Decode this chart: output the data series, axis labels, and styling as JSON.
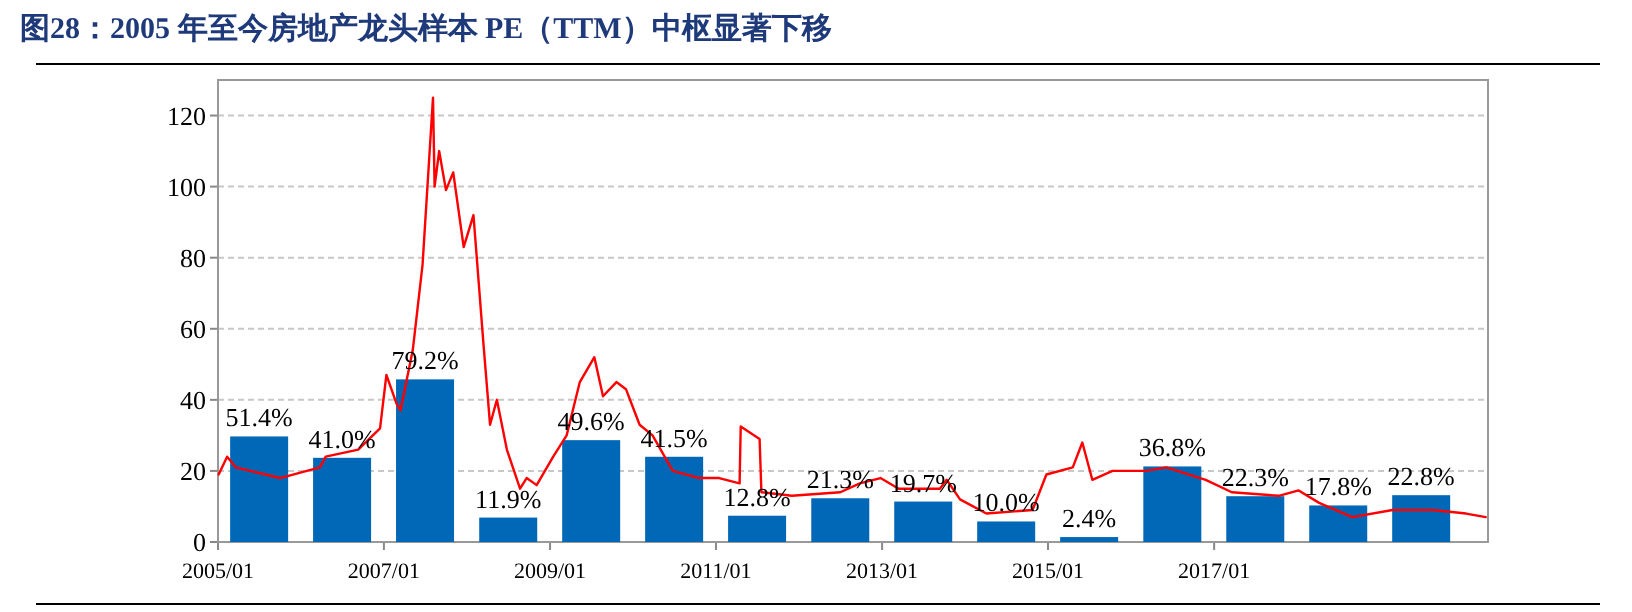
{
  "chart_data": {
    "type": "line",
    "title": "图28：2005 年至今房地产龙头样本 PE（TTM）中枢显著下移",
    "xlim": [
      "2005-01-01",
      "2020-04-20"
    ],
    "ylim": [
      0,
      130
    ],
    "xticks": [
      {
        "value": "2005-01-01",
        "label": "2005/01"
      },
      {
        "value": "2007-01-01",
        "label": "2007/01"
      },
      {
        "value": "2009-01-01",
        "label": "2009/01"
      },
      {
        "value": "2011-01-01",
        "label": "2011/01"
      },
      {
        "value": "2013-01-01",
        "label": "2013/01"
      },
      {
        "value": "2015-01-01",
        "label": "2015/01"
      },
      {
        "value": "2017-01-01",
        "label": "2017/01"
      }
    ],
    "yticks": [
      0,
      20,
      40,
      60,
      80,
      100,
      120
    ],
    "grid": "y",
    "y2lim": [
      0,
      225
    ],
    "series": [
      {
        "type": "bar",
        "axis": "y2",
        "color": "#0068b7",
        "x": [
          "2005-07-01",
          "2006-07-01",
          "2007-07-01",
          "2008-07-01",
          "2009-07-01",
          "2010-07-01",
          "2011-07-01",
          "2012-07-01",
          "2013-07-01",
          "2014-07-01",
          "2015-07-01",
          "2016-07-01",
          "2017-07-01",
          "2018-07-01",
          "2019-07-01"
        ],
        "values": [
          51.4,
          41.0,
          79.2,
          11.9,
          49.6,
          41.5,
          12.8,
          21.3,
          19.7,
          10.0,
          2.4,
          36.8,
          22.3,
          17.8,
          22.8
        ],
        "value_labels": [
          "51.4%",
          "41.0%",
          "79.2%",
          "11.9%",
          "49.6%",
          "41.5%",
          "12.8%",
          "21.3%",
          "19.7%",
          "10.0%",
          "2.4%",
          "36.8%",
          "22.3%",
          "17.8%",
          "22.8%"
        ]
      },
      {
        "color": "#ff0000",
        "x": [
          "2005-01-04",
          "2005-02-10",
          "2005-03-20",
          "2005-10-01",
          "2006-03-25",
          "2006-04-20",
          "2006-09-10",
          "2006-12-15",
          "2007-01-12",
          "2007-02-25",
          "2007-03-15",
          "2007-05-08",
          "2007-06-20",
          "2007-08-05",
          "2007-08-12",
          "2007-09-01",
          "2007-10-01",
          "2007-11-02",
          "2007-12-18",
          "2008-01-30",
          "2008-03-15",
          "2008-04-12",
          "2008-05-12",
          "2008-06-25",
          "2008-08-22",
          "2008-09-20",
          "2008-11-03",
          "2009-01-15",
          "2009-03-15",
          "2009-05-12",
          "2009-07-15",
          "2009-08-22",
          "2009-10-20",
          "2009-12-01",
          "2010-01-30",
          "2010-03-28",
          "2010-06-25",
          "2010-10-20",
          "2011-01-15",
          "2011-04-15",
          "2011-04-20",
          "2011-07-12",
          "2011-07-20",
          "2011-12-01",
          "2012-07-01",
          "2012-09-25",
          "2012-12-25",
          "2013-03-15",
          "2013-09-12",
          "2013-10-12",
          "2013-12-10",
          "2014-04-05",
          "2014-10-25",
          "2014-12-25",
          "2015-04-20",
          "2015-06-01",
          "2015-07-15",
          "2015-10-12",
          "2016-03-08",
          "2016-06-05",
          "2016-11-25",
          "2017-03-20",
          "2017-10-12",
          "2018-01-08",
          "2018-04-08",
          "2018-09-01",
          "2019-02-25",
          "2019-08-20",
          "2020-01-15",
          "2020-04-10"
        ],
        "values": [
          19,
          24,
          21,
          18,
          21,
          24,
          26,
          32,
          47,
          39,
          37,
          54,
          78,
          125,
          100,
          110,
          99,
          104,
          83,
          92,
          55,
          33,
          40,
          26,
          15,
          18,
          16,
          24,
          30,
          45,
          52,
          41,
          45,
          43,
          33,
          30,
          20,
          18,
          18,
          16.5,
          32.5,
          29,
          14,
          13,
          14,
          16.5,
          18,
          15,
          15,
          17.5,
          12,
          8,
          9,
          19,
          21,
          28,
          17.5,
          20,
          20,
          21,
          17.5,
          14,
          13,
          14.5,
          11,
          7,
          9,
          9,
          8,
          7
        ]
      }
    ]
  }
}
